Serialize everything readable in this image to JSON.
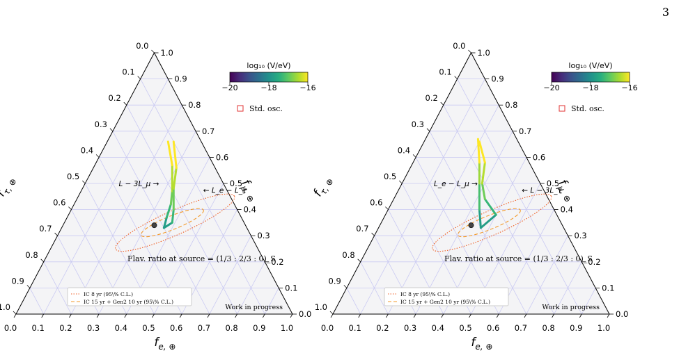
{
  "page_number": "3",
  "chart_data": [
    {
      "type": "ternary",
      "axes": {
        "bottom": {
          "label": "f_{e, ⊕}",
          "ticks": [
            "0.0",
            "0.1",
            "0.2",
            "0.3",
            "0.4",
            "0.5",
            "0.6",
            "0.7",
            "0.8",
            "0.9",
            "1.0"
          ]
        },
        "right": {
          "label": "f_{μ, ⊕}",
          "ticks": [
            "0.0",
            "0.1",
            "0.2",
            "0.3",
            "0.4",
            "0.5",
            "0.6",
            "0.7",
            "0.8",
            "0.9",
            "1.0"
          ]
        },
        "left": {
          "label": "f_{τ, ⊕}",
          "ticks": [
            "0.0",
            "0.1",
            "0.2",
            "0.3",
            "0.4",
            "0.5",
            "0.6",
            "0.7",
            "0.8",
            "0.9",
            "1.0"
          ]
        }
      },
      "colorbar": {
        "label": "log₁₀ (V/eV)",
        "ticks": [
          "−20",
          "−18",
          "−16"
        ],
        "range": [
          -20,
          -16
        ],
        "colormap": "viridis"
      },
      "legend_top": "Std. osc.",
      "annotations": {
        "left_label": "L − 3L_μ →",
        "right_label": "← L_e − L_τ"
      },
      "source_ratio_text": "Flav. ratio at source = (1/3 : 2/3 : 0)_S",
      "legend_items": [
        "IC 8 yr (95\\% C.L.)",
        "IC 15 yr + Gen2 10 yr (95\\% C.L.)"
      ],
      "watermark": "Work in progress",
      "std_osc_point": {
        "f_e": 0.33,
        "f_mu": 0.34,
        "f_tau": 0.33
      },
      "contours": [
        {
          "name": "IC 8 yr (95\\% C.L.)",
          "style": "dotted",
          "color": "#ee5a1f",
          "center": [
            0.4,
            0.35
          ],
          "axes_mag": [
            0.56,
            0.08
          ],
          "angle_deg": 24
        },
        {
          "name": "IC 15 yr + Gen2 10 yr (95\\% C.L.)",
          "style": "dashed",
          "color": "#f39a2a",
          "center": [
            0.39,
            0.35
          ],
          "axes_mag": [
            0.29,
            0.045
          ],
          "angle_deg": 22
        }
      ],
      "curves": [
        {
          "points": [
            [
              0.37,
              0.33
            ],
            [
              0.36,
              0.37
            ],
            [
              0.35,
              0.42
            ],
            [
              0.33,
              0.47
            ],
            [
              0.28,
              0.57
            ],
            [
              0.22,
              0.66
            ]
          ]
        },
        {
          "points": [
            [
              0.37,
              0.33
            ],
            [
              0.39,
              0.35
            ],
            [
              0.37,
              0.4
            ],
            [
              0.33,
              0.48
            ],
            [
              0.3,
              0.56
            ],
            [
              0.24,
              0.66
            ]
          ]
        }
      ]
    },
    {
      "type": "ternary",
      "axes": {
        "bottom": {
          "label": "f_{e, ⊕}",
          "ticks": [
            "0.0",
            "0.1",
            "0.2",
            "0.3",
            "0.4",
            "0.5",
            "0.6",
            "0.7",
            "0.8",
            "0.9",
            "1.0"
          ]
        },
        "right": {
          "label": "f_{μ, ⊕}",
          "ticks": [
            "0.0",
            "0.1",
            "0.2",
            "0.3",
            "0.4",
            "0.5",
            "0.6",
            "0.7",
            "0.8",
            "0.9",
            "1.0"
          ]
        },
        "left": {
          "label": "f_{τ, ⊕}",
          "ticks": [
            "0.0",
            "0.1",
            "0.2",
            "0.3",
            "0.4",
            "0.5",
            "0.6",
            "0.7",
            "0.8",
            "0.9",
            "1.0"
          ]
        }
      },
      "colorbar": {
        "label": "log₁₀ (V/eV)",
        "ticks": [
          "−20",
          "−18",
          "−16"
        ],
        "range": [
          -20,
          -16
        ],
        "colormap": "viridis"
      },
      "legend_top": "Std. osc.",
      "annotations": {
        "left_label": "L_e − L_μ →",
        "right_label": "← L − 3L_τ"
      },
      "source_ratio_text": "Flav. ratio at source = (1/3 : 2/3 : 0)_S",
      "legend_items": [
        "IC 8 yr (95\\% C.L.)",
        "IC 15 yr + Gen2 10 yr (95\\% C.L.)"
      ],
      "watermark": "Work in progress",
      "std_osc_point": {
        "f_e": 0.33,
        "f_mu": 0.34,
        "f_tau": 0.33
      },
      "contours": [
        {
          "name": "IC 8 yr (95\\% C.L.)",
          "style": "dotted",
          "color": "#ee5a1f",
          "center": [
            0.4,
            0.35
          ],
          "axes_mag": [
            0.56,
            0.08
          ],
          "angle_deg": 24
        },
        {
          "name": "IC 15 yr + Gen2 10 yr (95\\% C.L.)",
          "style": "dashed",
          "color": "#f39a2a",
          "center": [
            0.39,
            0.35
          ],
          "axes_mag": [
            0.29,
            0.045
          ],
          "angle_deg": 22
        }
      ],
      "curves": [
        {
          "points": [
            [
              0.37,
              0.33
            ],
            [
              0.33,
              0.4
            ],
            [
              0.28,
              0.5
            ],
            [
              0.24,
              0.58
            ],
            [
              0.19,
              0.67
            ]
          ]
        },
        {
          "points": [
            [
              0.37,
              0.33
            ],
            [
              0.4,
              0.38
            ],
            [
              0.33,
              0.44
            ],
            [
              0.29,
              0.5
            ],
            [
              0.26,
              0.58
            ],
            [
              0.2,
              0.66
            ]
          ]
        }
      ]
    }
  ]
}
